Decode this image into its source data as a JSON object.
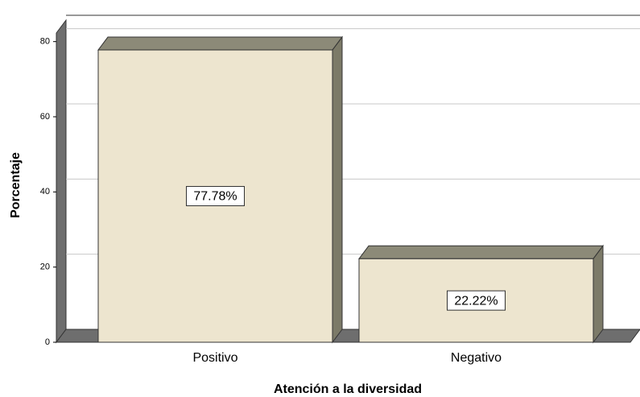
{
  "chart_data": {
    "type": "bar3d",
    "x_label": "Atención a la diversidad",
    "y_label": "Porcentaje",
    "categories": [
      "Positivo",
      "Negativo"
    ],
    "values": [
      77.78,
      22.22
    ],
    "value_labels": [
      "77.78%",
      "22.22%"
    ],
    "color": "#ede5cf",
    "ylim": [
      0,
      84
    ],
    "yticks": [
      0,
      20,
      40,
      60,
      80
    ],
    "grid": true
  }
}
